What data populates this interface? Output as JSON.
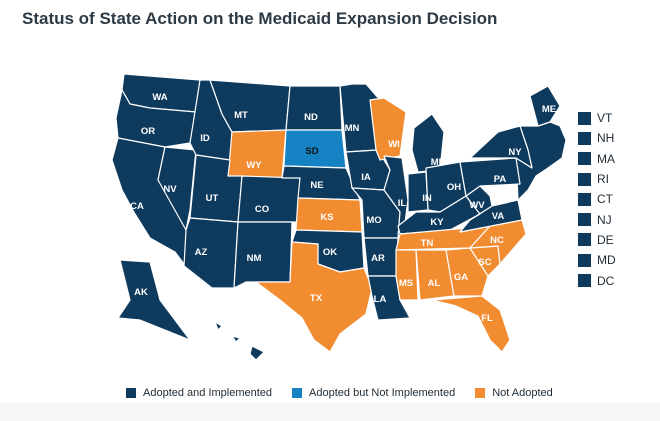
{
  "title": "Status of State Action on the Medicaid Expansion Decision",
  "colors": {
    "adopted": "#0e3a5e",
    "adopted_not_implemented": "#1582c4",
    "not_adopted": "#f28c31",
    "label_dark": "#ffffff",
    "label_light": "#111111",
    "highlight_outline": "#111111"
  },
  "legend": [
    {
      "status": "adopted",
      "label": "Adopted and Implemented"
    },
    {
      "status": "adopted_not_implemented",
      "label": "Adopted but Not Implemented"
    },
    {
      "status": "not_adopted",
      "label": "Not Adopted"
    }
  ],
  "side_states": [
    {
      "abbr": "VT",
      "status": "adopted"
    },
    {
      "abbr": "NH",
      "status": "adopted"
    },
    {
      "abbr": "MA",
      "status": "adopted"
    },
    {
      "abbr": "RI",
      "status": "adopted"
    },
    {
      "abbr": "CT",
      "status": "adopted"
    },
    {
      "abbr": "NJ",
      "status": "adopted"
    },
    {
      "abbr": "DE",
      "status": "adopted"
    },
    {
      "abbr": "MD",
      "status": "adopted"
    },
    {
      "abbr": "DC",
      "status": "adopted"
    }
  ],
  "highlighted_state": "FL",
  "states": [
    {
      "abbr": "WA",
      "status": "adopted"
    },
    {
      "abbr": "OR",
      "status": "adopted"
    },
    {
      "abbr": "CA",
      "status": "adopted"
    },
    {
      "abbr": "NV",
      "status": "adopted"
    },
    {
      "abbr": "ID",
      "status": "adopted"
    },
    {
      "abbr": "MT",
      "status": "adopted"
    },
    {
      "abbr": "WY",
      "status": "not_adopted"
    },
    {
      "abbr": "UT",
      "status": "adopted"
    },
    {
      "abbr": "AZ",
      "status": "adopted"
    },
    {
      "abbr": "CO",
      "status": "adopted"
    },
    {
      "abbr": "NM",
      "status": "adopted"
    },
    {
      "abbr": "ND",
      "status": "adopted"
    },
    {
      "abbr": "SD",
      "status": "adopted_not_implemented"
    },
    {
      "abbr": "NE",
      "status": "adopted"
    },
    {
      "abbr": "KS",
      "status": "not_adopted"
    },
    {
      "abbr": "OK",
      "status": "adopted"
    },
    {
      "abbr": "TX",
      "status": "not_adopted"
    },
    {
      "abbr": "MN",
      "status": "adopted"
    },
    {
      "abbr": "IA",
      "status": "adopted"
    },
    {
      "abbr": "MO",
      "status": "adopted"
    },
    {
      "abbr": "AR",
      "status": "adopted"
    },
    {
      "abbr": "LA",
      "status": "adopted"
    },
    {
      "abbr": "WI",
      "status": "not_adopted"
    },
    {
      "abbr": "IL",
      "status": "adopted"
    },
    {
      "abbr": "MI",
      "status": "adopted"
    },
    {
      "abbr": "IN",
      "status": "adopted"
    },
    {
      "abbr": "OH",
      "status": "adopted"
    },
    {
      "abbr": "KY",
      "status": "adopted"
    },
    {
      "abbr": "TN",
      "status": "not_adopted"
    },
    {
      "abbr": "MS",
      "status": "not_adopted"
    },
    {
      "abbr": "AL",
      "status": "not_adopted"
    },
    {
      "abbr": "GA",
      "status": "not_adopted"
    },
    {
      "abbr": "FL",
      "status": "not_adopted"
    },
    {
      "abbr": "SC",
      "status": "not_adopted"
    },
    {
      "abbr": "NC",
      "status": "not_adopted"
    },
    {
      "abbr": "VA",
      "status": "adopted"
    },
    {
      "abbr": "WV",
      "status": "adopted"
    },
    {
      "abbr": "PA",
      "status": "adopted"
    },
    {
      "abbr": "NY",
      "status": "adopted"
    },
    {
      "abbr": "ME",
      "status": "adopted"
    },
    {
      "abbr": "AK",
      "status": "adopted"
    },
    {
      "abbr": "HI",
      "status": "adopted"
    }
  ]
}
